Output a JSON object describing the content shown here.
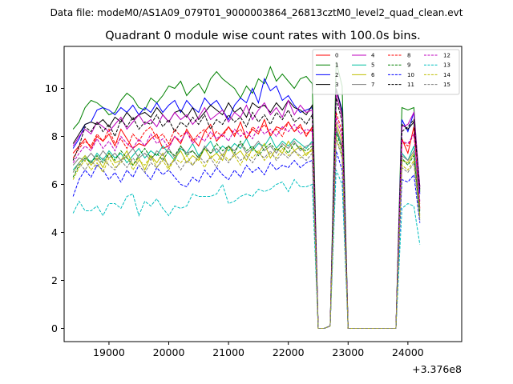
{
  "chart_data": {
    "type": "line",
    "suptitle": "Data file: modeM0/AS1A09_079T01_9000003864_26813cztM0_level2_quad_clean.evt",
    "title": "Quadrant 0 module wise count rates with 100.0s bins.",
    "xlabel": "",
    "ylabel": "",
    "x_offset_label": "+3.376e8",
    "xlim": [
      18250,
      24900
    ],
    "ylim": [
      -0.55,
      11.75
    ],
    "x_ticks": [
      19000,
      20000,
      21000,
      22000,
      23000,
      24000
    ],
    "x_tick_labels": [
      "19000",
      "20000",
      "21000",
      "22000",
      "23000",
      "24000"
    ],
    "y_ticks": [
      0,
      2,
      4,
      6,
      8,
      10
    ],
    "y_tick_labels": [
      "0",
      "2",
      "4",
      "6",
      "8",
      "10"
    ],
    "legend_location": "top-right",
    "series": [
      {
        "name": "0",
        "color": "#ff0000",
        "dash": "solid",
        "x_start": 18400,
        "x_step": 100,
        "values": [
          7.3,
          7.6,
          7.9,
          7.5,
          8.0,
          7.8,
          8.1,
          7.6,
          8.3,
          7.9,
          7.5,
          7.7,
          7.6,
          7.9,
          8.1,
          7.5,
          7.6,
          8.0,
          7.7,
          8.3,
          7.9,
          7.6,
          8.2,
          8.5,
          7.8,
          8.1,
          8.4,
          8.0,
          8.6,
          7.9,
          8.3,
          8.1,
          8.7,
          8.0,
          8.4,
          8.3,
          8.6,
          8.2,
          8.5,
          8.0,
          8.4,
          0.0,
          0.0,
          0.1,
          8.4,
          7.5,
          0.0,
          0.0,
          0.0,
          0.0,
          0.0,
          0.0,
          0.0,
          0.0,
          0.0,
          7.9,
          7.3,
          8.4,
          5.0
        ]
      },
      {
        "name": "1",
        "color": "#008000",
        "dash": "solid",
        "x_start": 18400,
        "x_step": 100,
        "values": [
          8.3,
          8.6,
          9.2,
          9.5,
          9.4,
          9.2,
          8.9,
          9.0,
          9.5,
          9.8,
          9.6,
          9.2,
          9.1,
          9.6,
          9.4,
          9.7,
          10.1,
          10.0,
          10.3,
          9.7,
          10.0,
          10.2,
          9.8,
          10.4,
          10.7,
          10.4,
          10.2,
          10.0,
          9.6,
          10.1,
          9.8,
          10.4,
          10.2,
          10.9,
          10.3,
          10.6,
          10.3,
          10.0,
          10.4,
          10.5,
          10.2,
          0.0,
          0.0,
          0.1,
          11.1,
          10.1,
          0.0,
          0.0,
          0.0,
          0.0,
          0.0,
          0.0,
          0.0,
          0.0,
          0.0,
          9.2,
          9.1,
          9.2,
          5.7
        ]
      },
      {
        "name": "2",
        "color": "#0000ff",
        "dash": "solid",
        "x_start": 18400,
        "x_step": 100,
        "values": [
          7.5,
          7.9,
          8.5,
          8.6,
          9.1,
          9.2,
          9.1,
          8.9,
          9.2,
          9.0,
          9.3,
          8.9,
          9.2,
          9.0,
          9.4,
          9.0,
          9.3,
          9.5,
          9.0,
          9.5,
          9.2,
          9.0,
          9.6,
          9.3,
          9.5,
          9.1,
          8.7,
          9.3,
          9.6,
          9.4,
          10.0,
          9.4,
          10.4,
          9.9,
          10.1,
          9.5,
          9.7,
          9.3,
          9.0,
          9.1,
          9.2,
          0.0,
          0.0,
          0.1,
          10.0,
          9.1,
          0.0,
          0.0,
          0.0,
          0.0,
          0.0,
          0.0,
          0.0,
          0.0,
          0.0,
          8.7,
          8.2,
          9.0,
          5.6
        ]
      },
      {
        "name": "3",
        "color": "#000000",
        "dash": "solid",
        "x_start": 18400,
        "x_step": 100,
        "values": [
          7.7,
          8.1,
          8.5,
          8.6,
          8.5,
          8.7,
          8.4,
          8.8,
          8.6,
          9.0,
          8.7,
          8.9,
          9.0,
          8.8,
          9.2,
          8.9,
          8.6,
          9.0,
          9.1,
          8.8,
          9.2,
          8.7,
          9.0,
          9.3,
          9.1,
          8.9,
          9.4,
          9.0,
          9.2,
          8.8,
          9.4,
          9.2,
          9.3,
          9.0,
          9.4,
          9.1,
          9.5,
          9.2,
          9.1,
          8.9,
          9.3,
          0.0,
          0.0,
          0.1,
          10.0,
          9.0,
          0.0,
          0.0,
          0.0,
          0.0,
          0.0,
          0.0,
          0.0,
          0.0,
          0.0,
          8.5,
          8.3,
          8.6,
          5.9
        ]
      },
      {
        "name": "4",
        "color": "#bf00bf",
        "dash": "solid",
        "x_start": 18400,
        "x_step": 100,
        "values": [
          7.6,
          8.0,
          8.3,
          8.1,
          8.6,
          8.4,
          8.2,
          8.5,
          8.8,
          8.3,
          8.6,
          8.9,
          8.5,
          8.7,
          8.4,
          8.9,
          8.6,
          9.0,
          8.7,
          8.9,
          8.5,
          8.8,
          9.2,
          8.7,
          8.9,
          9.1,
          8.6,
          9.0,
          8.8,
          9.3,
          8.7,
          9.1,
          9.4,
          8.9,
          9.2,
          8.8,
          9.5,
          8.9,
          9.3,
          9.0,
          9.1,
          0.0,
          0.0,
          0.1,
          9.8,
          8.8,
          0.0,
          0.0,
          0.0,
          0.0,
          0.0,
          0.0,
          0.0,
          0.0,
          0.0,
          8.4,
          8.5,
          9.0,
          5.9
        ]
      },
      {
        "name": "5",
        "color": "#00bf9f",
        "dash": "solid",
        "x_start": 18400,
        "x_step": 100,
        "values": [
          6.6,
          6.9,
          7.2,
          6.9,
          7.3,
          7.0,
          7.4,
          7.1,
          7.3,
          6.9,
          7.2,
          7.5,
          7.1,
          7.4,
          7.2,
          7.6,
          7.3,
          7.0,
          7.5,
          7.3,
          7.7,
          7.2,
          7.5,
          7.8,
          7.3,
          7.6,
          7.4,
          7.7,
          7.5,
          7.9,
          7.4,
          7.7,
          7.6,
          8.0,
          7.5,
          7.8,
          7.6,
          7.9,
          7.7,
          7.5,
          7.8,
          0.0,
          0.0,
          0.1,
          8.2,
          7.6,
          0.0,
          0.0,
          0.0,
          0.0,
          0.0,
          0.0,
          0.0,
          0.0,
          0.0,
          7.3,
          7.0,
          7.6,
          4.9
        ]
      },
      {
        "name": "6",
        "color": "#bfbf00",
        "dash": "solid",
        "x_start": 18400,
        "x_step": 100,
        "values": [
          6.5,
          6.9,
          7.2,
          6.8,
          7.1,
          6.7,
          7.3,
          6.9,
          7.0,
          7.4,
          6.8,
          7.1,
          6.6,
          7.2,
          6.9,
          7.3,
          6.7,
          7.1,
          7.4,
          6.9,
          7.2,
          7.0,
          7.5,
          7.1,
          7.3,
          7.0,
          7.6,
          7.2,
          7.4,
          7.0,
          7.5,
          7.3,
          7.7,
          7.1,
          7.5,
          7.3,
          7.8,
          7.4,
          7.6,
          7.2,
          7.5,
          0.0,
          0.0,
          0.1,
          8.6,
          7.8,
          0.0,
          0.0,
          0.0,
          0.0,
          0.0,
          0.0,
          0.0,
          0.0,
          0.0,
          7.0,
          6.9,
          7.3,
          4.7
        ]
      },
      {
        "name": "7",
        "color": "#808080",
        "dash": "solid",
        "x_start": 18400,
        "x_step": 100,
        "values": [
          6.8,
          7.1,
          7.0,
          7.3,
          7.0,
          7.4,
          7.1,
          7.3,
          7.0,
          7.2,
          7.5,
          7.1,
          7.3,
          7.0,
          7.4,
          7.2,
          7.5,
          7.1,
          7.6,
          7.3,
          7.4,
          7.1,
          7.6,
          7.3,
          7.5,
          7.2,
          7.6,
          7.4,
          7.7,
          7.3,
          7.5,
          7.8,
          7.4,
          7.6,
          7.3,
          7.7,
          7.5,
          7.8,
          7.4,
          7.6,
          7.7,
          0.0,
          0.0,
          0.1,
          8.4,
          7.6,
          0.0,
          0.0,
          0.0,
          0.0,
          0.0,
          0.0,
          0.0,
          0.0,
          0.0,
          7.2,
          7.0,
          7.4,
          4.9
        ]
      },
      {
        "name": "8",
        "color": "#ff0000",
        "dash": "dashed",
        "x_start": 18400,
        "x_step": 100,
        "values": [
          7.1,
          7.5,
          7.8,
          7.6,
          8.1,
          7.8,
          8.3,
          7.7,
          7.9,
          7.5,
          8.1,
          7.8,
          8.2,
          8.4,
          7.9,
          8.1,
          7.7,
          8.3,
          8.0,
          8.2,
          7.8,
          8.1,
          8.3,
          7.9,
          8.2,
          8.0,
          8.4,
          8.1,
          8.3,
          7.9,
          8.4,
          8.2,
          8.5,
          8.1,
          8.3,
          8.0,
          8.6,
          8.2,
          8.4,
          8.1,
          8.3,
          0.0,
          0.0,
          0.1,
          9.0,
          8.2,
          0.0,
          0.0,
          0.0,
          0.0,
          0.0,
          0.0,
          0.0,
          0.0,
          0.0,
          7.8,
          7.6,
          8.1,
          5.2
        ]
      },
      {
        "name": "9",
        "color": "#008000",
        "dash": "dashed",
        "x_start": 18400,
        "x_step": 100,
        "values": [
          6.3,
          6.8,
          7.1,
          6.9,
          7.2,
          6.9,
          7.3,
          7.0,
          7.4,
          7.1,
          6.8,
          7.2,
          7.5,
          7.1,
          7.3,
          7.0,
          7.4,
          7.2,
          7.6,
          7.2,
          7.4,
          7.1,
          7.5,
          7.3,
          7.7,
          7.4,
          7.6,
          7.3,
          7.8,
          7.4,
          7.6,
          7.2,
          7.5,
          7.7,
          7.4,
          7.6,
          7.3,
          7.7,
          7.5,
          7.4,
          7.6,
          0.0,
          0.0,
          0.1,
          8.2,
          7.4,
          0.0,
          0.0,
          0.0,
          0.0,
          0.0,
          0.0,
          0.0,
          0.0,
          0.0,
          7.1,
          6.8,
          7.2,
          4.8
        ]
      },
      {
        "name": "10",
        "color": "#0000ff",
        "dash": "dashed",
        "x_start": 18400,
        "x_step": 100,
        "values": [
          5.5,
          6.2,
          6.6,
          6.3,
          6.8,
          6.6,
          6.2,
          6.5,
          6.1,
          6.6,
          6.3,
          6.8,
          6.5,
          6.2,
          6.7,
          6.4,
          6.6,
          6.3,
          6.0,
          5.9,
          6.3,
          6.1,
          6.6,
          6.3,
          6.7,
          6.4,
          6.2,
          6.6,
          6.3,
          6.8,
          6.5,
          6.7,
          6.4,
          6.9,
          6.6,
          6.8,
          6.7,
          7.0,
          6.7,
          6.9,
          7.0,
          0.0,
          0.0,
          0.1,
          7.4,
          6.6,
          0.0,
          0.0,
          0.0,
          0.0,
          0.0,
          0.0,
          0.0,
          0.0,
          0.0,
          6.2,
          6.1,
          6.4,
          4.4
        ]
      },
      {
        "name": "11",
        "color": "#000000",
        "dash": "dashed",
        "x_start": 18400,
        "x_step": 100,
        "values": [
          7.0,
          7.6,
          8.4,
          8.2,
          8.6,
          8.2,
          8.5,
          8.0,
          8.7,
          8.4,
          8.8,
          8.3,
          8.6,
          8.5,
          8.9,
          8.4,
          8.7,
          8.2,
          8.6,
          8.4,
          8.8,
          8.5,
          8.9,
          8.3,
          8.7,
          8.5,
          8.9,
          8.6,
          8.8,
          8.4,
          9.0,
          8.6,
          8.9,
          8.5,
          9.0,
          8.7,
          9.1,
          8.6,
          8.8,
          8.5,
          8.9,
          0.0,
          0.0,
          0.1,
          9.6,
          8.6,
          0.0,
          0.0,
          0.0,
          0.0,
          0.0,
          0.0,
          0.0,
          0.0,
          0.0,
          8.2,
          8.4,
          8.7,
          5.8
        ]
      },
      {
        "name": "12",
        "color": "#bf00bf",
        "dash": "dashed",
        "x_start": 18400,
        "x_step": 100,
        "values": [
          6.9,
          7.3,
          7.6,
          7.4,
          7.9,
          7.5,
          7.8,
          7.4,
          8.0,
          7.7,
          7.5,
          7.9,
          7.6,
          8.1,
          7.7,
          7.9,
          7.5,
          8.0,
          7.8,
          8.2,
          7.7,
          8.0,
          7.8,
          8.2,
          7.9,
          8.1,
          7.8,
          8.3,
          8.0,
          8.2,
          7.9,
          8.4,
          8.1,
          8.3,
          8.0,
          8.4,
          8.2,
          8.5,
          8.1,
          8.3,
          8.2,
          0.0,
          0.0,
          0.1,
          8.8,
          8.0,
          0.0,
          0.0,
          0.0,
          0.0,
          0.0,
          0.0,
          0.0,
          0.0,
          0.0,
          7.8,
          7.7,
          8.1,
          5.3
        ]
      },
      {
        "name": "13",
        "color": "#00bfbf",
        "dash": "dashed",
        "x_start": 18400,
        "x_step": 100,
        "values": [
          4.8,
          5.3,
          4.9,
          4.9,
          5.1,
          4.7,
          5.2,
          5.2,
          5.0,
          5.5,
          5.6,
          4.7,
          5.3,
          5.1,
          5.4,
          5.0,
          4.7,
          5.1,
          5.0,
          5.1,
          5.6,
          5.5,
          5.5,
          5.5,
          5.6,
          6.0,
          5.2,
          5.3,
          5.5,
          5.6,
          5.5,
          5.8,
          5.7,
          5.8,
          6.0,
          6.1,
          5.7,
          6.2,
          5.9,
          5.9,
          6.0,
          0.0,
          0.0,
          0.1,
          6.6,
          6.0,
          0.0,
          0.0,
          0.0,
          0.0,
          0.0,
          0.0,
          0.0,
          0.0,
          0.0,
          5.0,
          5.2,
          5.1,
          3.5
        ]
      },
      {
        "name": "14",
        "color": "#bfbf00",
        "dash": "dashed",
        "x_start": 18400,
        "x_step": 100,
        "values": [
          6.2,
          6.7,
          7.0,
          6.6,
          6.9,
          6.5,
          7.1,
          6.7,
          6.9,
          7.2,
          6.6,
          7.0,
          6.8,
          7.2,
          6.7,
          7.0,
          6.6,
          7.1,
          6.9,
          7.2,
          6.8,
          7.1,
          6.7,
          7.2,
          6.9,
          7.3,
          7.0,
          7.2,
          6.8,
          7.3,
          7.1,
          7.4,
          7.0,
          7.3,
          7.1,
          7.5,
          7.2,
          7.4,
          7.1,
          7.3,
          7.4,
          0.0,
          0.0,
          0.1,
          8.0,
          7.2,
          0.0,
          0.0,
          0.0,
          0.0,
          0.0,
          0.0,
          0.0,
          0.0,
          0.0,
          6.8,
          6.6,
          7.0,
          4.6
        ]
      },
      {
        "name": "15",
        "color": "#808080",
        "dash": "dashed",
        "x_start": 18400,
        "x_step": 100,
        "values": [
          6.5,
          6.9,
          6.6,
          7.0,
          6.7,
          7.1,
          6.8,
          6.6,
          7.0,
          6.7,
          7.1,
          6.8,
          6.5,
          6.9,
          6.7,
          7.1,
          6.8,
          7.0,
          6.6,
          7.0,
          6.8,
          7.2,
          6.9,
          7.1,
          6.7,
          7.2,
          6.9,
          7.3,
          7.0,
          7.2,
          6.9,
          7.3,
          7.1,
          7.4,
          7.0,
          7.3,
          7.1,
          7.4,
          7.2,
          7.0,
          7.3,
          0.0,
          0.0,
          0.1,
          7.9,
          7.1,
          0.0,
          0.0,
          0.0,
          0.0,
          0.0,
          0.0,
          0.0,
          0.0,
          0.0,
          6.7,
          6.5,
          6.9,
          4.5
        ]
      }
    ]
  }
}
